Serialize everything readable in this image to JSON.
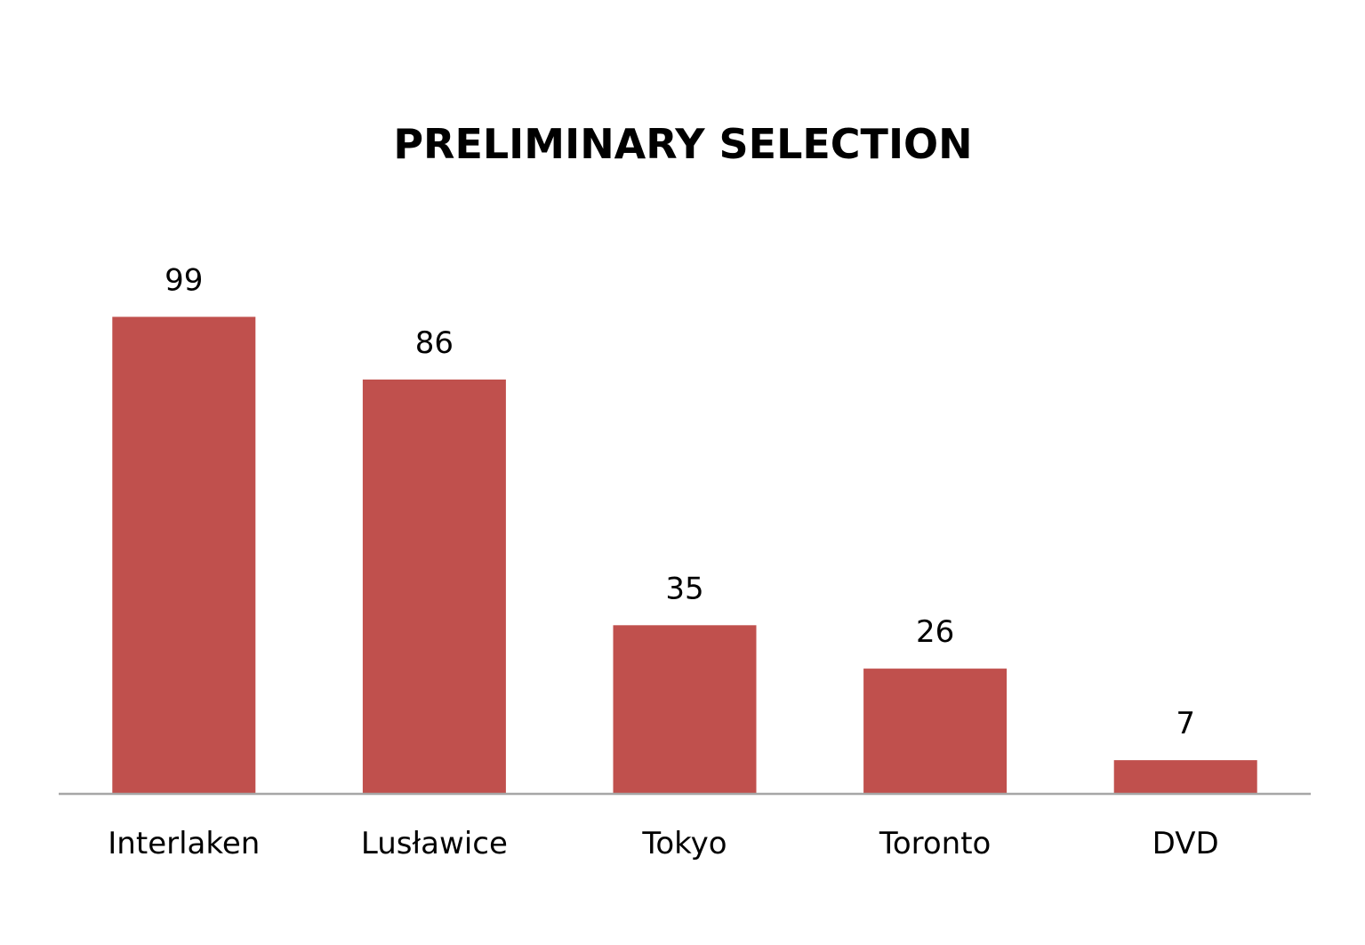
{
  "chart_data": {
    "type": "bar",
    "title": "PRELIMINARY SELECTION",
    "categories": [
      "Interlaken",
      "Lusławice",
      "Tokyo",
      "Toronto",
      "DVD"
    ],
    "values": [
      99,
      86,
      35,
      26,
      7
    ],
    "ylim": [
      0,
      100
    ],
    "grid": false,
    "legend": "none",
    "data_labels": true,
    "bar_color": "#C0504D",
    "axis_color": "#A6A6A6"
  }
}
